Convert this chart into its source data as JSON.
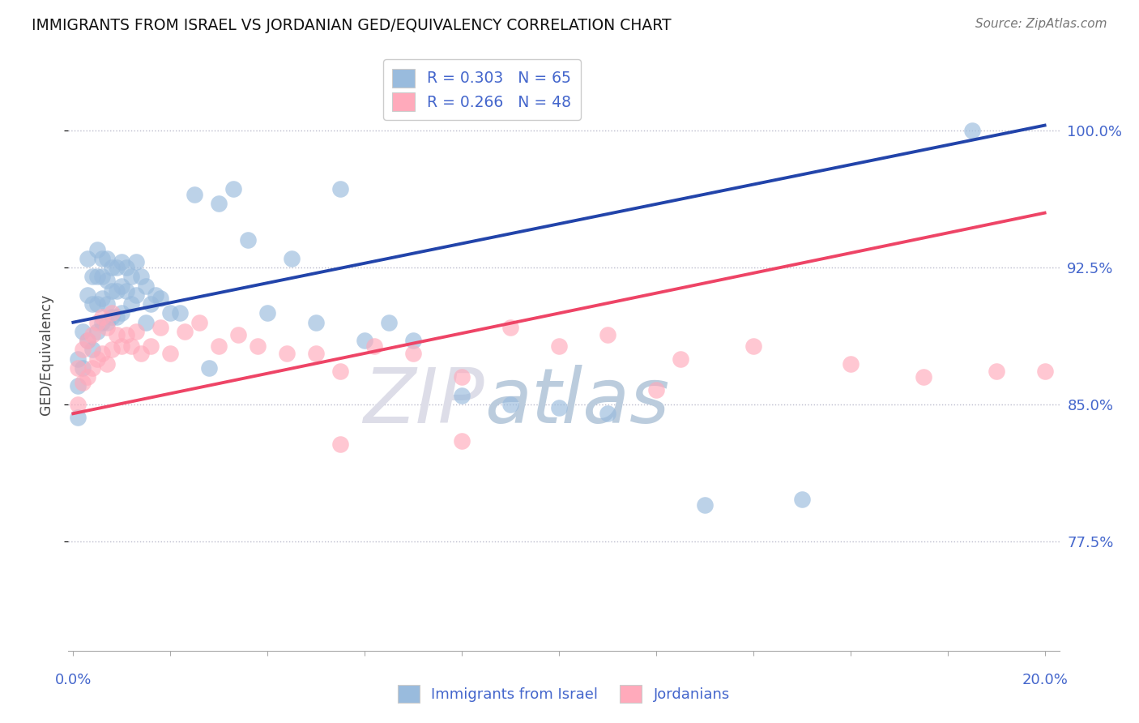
{
  "title": "IMMIGRANTS FROM ISRAEL VS JORDANIAN GED/EQUIVALENCY CORRELATION CHART",
  "source": "Source: ZipAtlas.com",
  "ylabel": "GED/Equivalency",
  "ytick_labels": [
    "100.0%",
    "92.5%",
    "85.0%",
    "77.5%"
  ],
  "ytick_vals": [
    1.0,
    0.925,
    0.85,
    0.775
  ],
  "xlim": [
    0.0,
    0.2
  ],
  "ylim": [
    0.715,
    1.04
  ],
  "legend_r1": "R = 0.303",
  "legend_n1": "N = 65",
  "legend_r2": "R = 0.266",
  "legend_n2": "N = 48",
  "color_blue": "#99BBDD",
  "color_pink": "#FFAABB",
  "color_blue_line": "#2244AA",
  "color_pink_line": "#EE4466",
  "color_axis_text": "#4466CC",
  "color_title": "#111111",
  "watermark_zip": "ZIP",
  "watermark_atlas": "atlas",
  "label_israel": "Immigrants from Israel",
  "label_jordan": "Jordanians",
  "blue_line_x": [
    0.0,
    0.2
  ],
  "blue_line_y": [
    0.895,
    1.003
  ],
  "pink_line_x": [
    0.0,
    0.2
  ],
  "pink_line_y": [
    0.845,
    0.955
  ],
  "blue_x": [
    0.001,
    0.001,
    0.001,
    0.002,
    0.002,
    0.003,
    0.003,
    0.003,
    0.004,
    0.004,
    0.004,
    0.005,
    0.005,
    0.005,
    0.005,
    0.006,
    0.006,
    0.006,
    0.006,
    0.007,
    0.007,
    0.007,
    0.007,
    0.008,
    0.008,
    0.008,
    0.009,
    0.009,
    0.009,
    0.01,
    0.01,
    0.01,
    0.011,
    0.011,
    0.012,
    0.012,
    0.013,
    0.013,
    0.014,
    0.015,
    0.015,
    0.016,
    0.017,
    0.018,
    0.02,
    0.022,
    0.025,
    0.028,
    0.03,
    0.033,
    0.036,
    0.04,
    0.045,
    0.05,
    0.055,
    0.06,
    0.065,
    0.07,
    0.08,
    0.09,
    0.1,
    0.11,
    0.13,
    0.15,
    0.185
  ],
  "blue_y": [
    0.875,
    0.86,
    0.843,
    0.89,
    0.87,
    0.93,
    0.91,
    0.885,
    0.92,
    0.905,
    0.88,
    0.935,
    0.92,
    0.905,
    0.89,
    0.93,
    0.92,
    0.908,
    0.895,
    0.93,
    0.918,
    0.905,
    0.895,
    0.925,
    0.912,
    0.898,
    0.925,
    0.912,
    0.898,
    0.928,
    0.915,
    0.9,
    0.925,
    0.912,
    0.92,
    0.905,
    0.928,
    0.91,
    0.92,
    0.915,
    0.895,
    0.905,
    0.91,
    0.908,
    0.9,
    0.9,
    0.965,
    0.87,
    0.96,
    0.968,
    0.94,
    0.9,
    0.93,
    0.895,
    0.968,
    0.885,
    0.895,
    0.885,
    0.855,
    0.85,
    0.848,
    0.845,
    0.795,
    0.798,
    1.0
  ],
  "pink_x": [
    0.001,
    0.001,
    0.002,
    0.002,
    0.003,
    0.003,
    0.004,
    0.004,
    0.005,
    0.005,
    0.006,
    0.006,
    0.007,
    0.007,
    0.008,
    0.008,
    0.009,
    0.01,
    0.011,
    0.012,
    0.013,
    0.014,
    0.016,
    0.018,
    0.02,
    0.023,
    0.026,
    0.03,
    0.034,
    0.038,
    0.044,
    0.05,
    0.055,
    0.062,
    0.07,
    0.08,
    0.09,
    0.1,
    0.11,
    0.125,
    0.14,
    0.16,
    0.175,
    0.19,
    0.2,
    0.055,
    0.08,
    0.12
  ],
  "pink_y": [
    0.87,
    0.85,
    0.88,
    0.862,
    0.885,
    0.865,
    0.888,
    0.87,
    0.895,
    0.875,
    0.898,
    0.878,
    0.892,
    0.872,
    0.9,
    0.88,
    0.888,
    0.882,
    0.888,
    0.882,
    0.89,
    0.878,
    0.882,
    0.892,
    0.878,
    0.89,
    0.895,
    0.882,
    0.888,
    0.882,
    0.878,
    0.878,
    0.868,
    0.882,
    0.878,
    0.865,
    0.892,
    0.882,
    0.888,
    0.875,
    0.882,
    0.872,
    0.865,
    0.868,
    0.868,
    0.828,
    0.83,
    0.858
  ]
}
